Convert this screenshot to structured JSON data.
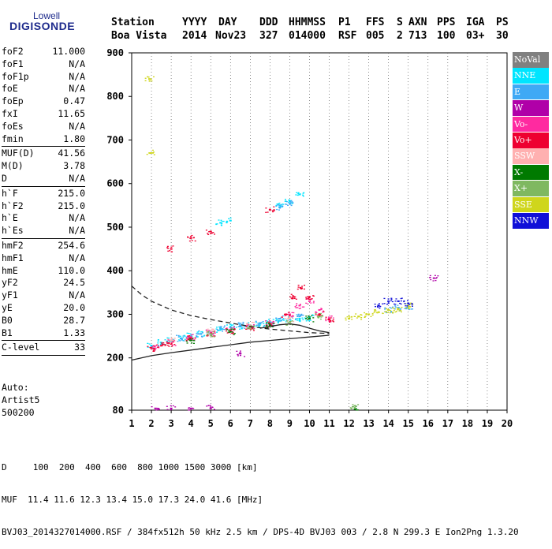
{
  "logo": {
    "line1": "Lowell",
    "line2": "DIGISONDE"
  },
  "header": {
    "labels": [
      "Station",
      "YYYY",
      "DAY",
      "DDD",
      "HHMMSS",
      "P1",
      "FFS",
      "S",
      "AXN",
      "PPS",
      "IGA",
      "PS"
    ],
    "values": [
      "Boa Vista",
      "2014",
      "Nov23",
      "327",
      "014000",
      "RSF",
      "005",
      "2",
      "713",
      "100",
      "03+",
      "30"
    ]
  },
  "parameters": {
    "group1": [
      {
        "name": "foF2",
        "value": "11.000"
      },
      {
        "name": "foF1",
        "value": "N/A"
      },
      {
        "name": "foF1p",
        "value": "N/A"
      },
      {
        "name": "foE",
        "value": "N/A"
      },
      {
        "name": "foEp",
        "value": "0.47"
      },
      {
        "name": "fxI",
        "value": "11.65"
      },
      {
        "name": "foEs",
        "value": "N/A"
      },
      {
        "name": "fmin",
        "value": "1.80"
      }
    ],
    "group2": [
      {
        "name": "MUF(D)",
        "value": "41.56"
      },
      {
        "name": "M(D)",
        "value": "3.78"
      },
      {
        "name": "D",
        "value": "N/A"
      }
    ],
    "group3": [
      {
        "name": "h`F",
        "value": "215.0"
      },
      {
        "name": "h`F2",
        "value": "215.0"
      },
      {
        "name": "h`E",
        "value": "N/A"
      },
      {
        "name": "h`Es",
        "value": "N/A"
      }
    ],
    "group4": [
      {
        "name": "hmF2",
        "value": "254.6"
      },
      {
        "name": "hmF1",
        "value": "N/A"
      },
      {
        "name": "hmE",
        "value": "110.0"
      },
      {
        "name": "yF2",
        "value": "24.5"
      },
      {
        "name": "yF1",
        "value": "N/A"
      },
      {
        "name": "yE",
        "value": "20.0"
      },
      {
        "name": "B0",
        "value": "28.7"
      },
      {
        "name": "B1",
        "value": "1.33"
      }
    ],
    "group5": [
      {
        "name": "C-level",
        "value": "33"
      }
    ],
    "extra": [
      "Auto:",
      "Artist5",
      "500200"
    ]
  },
  "legend": [
    {
      "label": "NoVal",
      "color": "#808080"
    },
    {
      "label": "NNE",
      "color": "#00e5ff"
    },
    {
      "label": "E",
      "color": "#3fa9f5"
    },
    {
      "label": "W",
      "color": "#b000a8"
    },
    {
      "label": "Vo-",
      "color": "#ff2aa0"
    },
    {
      "label": "Vo+",
      "color": "#ee0030"
    },
    {
      "label": "SSW",
      "color": "#ffb0b0"
    },
    {
      "label": "X-",
      "color": "#007a00"
    },
    {
      "label": "X+",
      "color": "#7fb860"
    },
    {
      "label": "SSE",
      "color": "#cfd61c"
    },
    {
      "label": "NNW",
      "color": "#1010d8"
    }
  ],
  "footer": {
    "line1": "D     100  200  400  600  800 1000 1500 3000 [km]",
    "line2": "MUF  11.4 11.6 12.3 13.4 15.0 17.3 24.0 41.6 [MHz]",
    "line3": "BVJ03_2014327014000.RSF / 384fx512h 50 kHz 2.5 km / DPS-4D BVJ03 003 / 2.8 N 299.3 E Ion2Png 1.3.20"
  },
  "chart_data": {
    "type": "scatter",
    "title": "",
    "xlabel": "",
    "ylabel": "",
    "xlim": [
      1,
      20
    ],
    "ylim": [
      80,
      900
    ],
    "x_ticks": [
      1,
      2,
      3,
      4,
      5,
      6,
      7,
      8,
      9,
      10,
      11,
      12,
      13,
      14,
      15,
      16,
      17,
      18,
      19,
      20
    ],
    "y_ticks": [
      80,
      200,
      300,
      400,
      500,
      600,
      700,
      800,
      900
    ],
    "x_unit": "MHz",
    "y_unit": "km",
    "series": [
      {
        "name": "NNE",
        "color": "#00e5ff",
        "points": [
          [
            2.0,
            228
          ],
          [
            2.5,
            235
          ],
          [
            3.0,
            240
          ],
          [
            3.5,
            245
          ],
          [
            4.0,
            250
          ],
          [
            4.5,
            255
          ],
          [
            5.0,
            260
          ],
          [
            5.5,
            265
          ],
          [
            6.0,
            270
          ],
          [
            6.5,
            272
          ],
          [
            7.0,
            275
          ],
          [
            7.5,
            278
          ],
          [
            8.0,
            282
          ],
          [
            8.5,
            285
          ],
          [
            9.0,
            288
          ],
          [
            9.5,
            290
          ],
          [
            10.0,
            292
          ],
          [
            5.5,
            510
          ],
          [
            6.0,
            515
          ],
          [
            8.5,
            550
          ],
          [
            9.0,
            560
          ],
          [
            9.5,
            575
          ]
        ]
      },
      {
        "name": "E",
        "color": "#3fa9f5",
        "points": [
          [
            3.5,
            245
          ],
          [
            4.5,
            255
          ],
          [
            5.5,
            268
          ],
          [
            6.5,
            275
          ],
          [
            7.5,
            280
          ],
          [
            8.5,
            290
          ],
          [
            9.5,
            295
          ],
          [
            14.0,
            310
          ],
          [
            14.5,
            315
          ],
          [
            15.0,
            318
          ],
          [
            8.5,
            545
          ],
          [
            9.0,
            555
          ]
        ]
      },
      {
        "name": "W",
        "color": "#b000a8",
        "points": [
          [
            2.2,
            84
          ],
          [
            3.0,
            84
          ],
          [
            4.0,
            84
          ],
          [
            5.0,
            84
          ],
          [
            6.5,
            210
          ],
          [
            16.3,
            383
          ]
        ]
      },
      {
        "name": "Vo-",
        "color": "#ff2aa0",
        "points": [
          [
            2.2,
            222
          ],
          [
            3.0,
            235
          ],
          [
            4.0,
            248
          ],
          [
            5.0,
            258
          ],
          [
            6.0,
            265
          ],
          [
            7.0,
            272
          ],
          [
            8.0,
            280
          ],
          [
            9.0,
            300
          ],
          [
            9.5,
            320
          ],
          [
            10.0,
            330
          ],
          [
            10.5,
            310
          ],
          [
            11.0,
            290
          ]
        ]
      },
      {
        "name": "Vo+",
        "color": "#ee0030",
        "points": [
          [
            2.0,
            222
          ],
          [
            2.5,
            228
          ],
          [
            3.0,
            232
          ],
          [
            4.0,
            245
          ],
          [
            5.0,
            255
          ],
          [
            6.0,
            262
          ],
          [
            7.0,
            270
          ],
          [
            8.0,
            276
          ],
          [
            8.8,
            300
          ],
          [
            9.2,
            340
          ],
          [
            9.6,
            360
          ],
          [
            10.0,
            340
          ],
          [
            10.5,
            300
          ],
          [
            11.0,
            288
          ],
          [
            3.0,
            450
          ],
          [
            4.0,
            475
          ],
          [
            5.0,
            490
          ],
          [
            8.0,
            540
          ]
        ]
      },
      {
        "name": "SSW",
        "color": "#ffb0b0",
        "points": [
          [
            3.0,
            240
          ],
          [
            5.0,
            262
          ],
          [
            7.0,
            275
          ],
          [
            9.0,
            290
          ]
        ]
      },
      {
        "name": "X-",
        "color": "#007a00",
        "points": [
          [
            4.0,
            240
          ],
          [
            6.0,
            260
          ],
          [
            8.0,
            275
          ],
          [
            10.0,
            290
          ],
          [
            12.3,
            82
          ]
        ]
      },
      {
        "name": "X+",
        "color": "#7fb860",
        "points": [
          [
            5.0,
            255
          ],
          [
            7.0,
            268
          ],
          [
            9.0,
            282
          ],
          [
            10.5,
            295
          ],
          [
            12.3,
            90
          ]
        ]
      },
      {
        "name": "SSE",
        "color": "#cfd61c",
        "points": [
          [
            12.0,
            290
          ],
          [
            12.5,
            295
          ],
          [
            13.0,
            300
          ],
          [
            13.5,
            305
          ],
          [
            14.0,
            310
          ],
          [
            14.5,
            312
          ],
          [
            15.0,
            320
          ],
          [
            1.9,
            840
          ],
          [
            1.95,
            670
          ]
        ]
      },
      {
        "name": "NNW",
        "color": "#1010d8",
        "points": [
          [
            13.5,
            320
          ],
          [
            14.0,
            330
          ],
          [
            14.5,
            330
          ],
          [
            15.0,
            325
          ]
        ]
      }
    ],
    "lines": [
      {
        "name": "profile",
        "style": "solid",
        "points": [
          [
            1.0,
            195
          ],
          [
            2.0,
            205
          ],
          [
            3.0,
            212
          ],
          [
            4.0,
            218
          ],
          [
            5.0,
            224
          ],
          [
            6.0,
            230
          ],
          [
            7.0,
            236
          ],
          [
            8.0,
            240
          ],
          [
            9.0,
            244
          ],
          [
            10.0,
            248
          ],
          [
            11.0,
            252
          ]
        ]
      },
      {
        "name": "profile-upper",
        "style": "solid",
        "points": [
          [
            7.5,
            268
          ],
          [
            8.0,
            272
          ],
          [
            8.5,
            276
          ],
          [
            9.0,
            278
          ],
          [
            9.5,
            275
          ],
          [
            10.0,
            268
          ],
          [
            10.5,
            262
          ],
          [
            11.0,
            258
          ]
        ]
      },
      {
        "name": "dashed",
        "style": "dashed",
        "points": [
          [
            1.0,
            365
          ],
          [
            1.5,
            345
          ],
          [
            2.0,
            330
          ],
          [
            3.0,
            310
          ],
          [
            4.0,
            297
          ],
          [
            5.0,
            288
          ],
          [
            6.0,
            280
          ],
          [
            7.0,
            272
          ],
          [
            8.0,
            266
          ],
          [
            9.0,
            262
          ],
          [
            10.0,
            258
          ],
          [
            11.0,
            256
          ]
        ]
      }
    ]
  }
}
